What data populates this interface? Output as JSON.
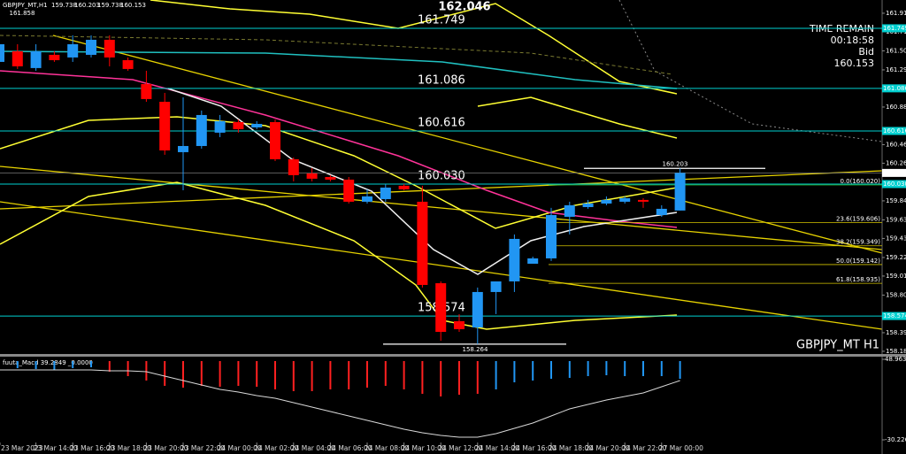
{
  "chart_data": {
    "type": "candlestick",
    "header": "GBPJPY_MT,H1",
    "symbol_label": "GBPJPY_MT H1",
    "categories": [
      "23 Mar 2023",
      null,
      "23 Mar 14:00",
      null,
      "23 Mar 16:00",
      null,
      "23 Mar 18:00",
      null,
      "23 Mar 20:00",
      null,
      "23 Mar 22:00",
      null,
      "24 Mar 00:00",
      null,
      "24 Mar 02:00",
      null,
      "24 Mar 04:00",
      null,
      "24 Mar 06:00",
      null,
      "24 Mar 08:00",
      null,
      "24 Mar 10:00",
      null,
      "24 Mar 12:00",
      null,
      "24 Mar 14:00",
      null,
      "24 Mar 16:00",
      null,
      "24 Mar 18:00",
      null,
      "24 Mar 20:00",
      null,
      "24 Mar 22:00",
      null,
      "27 Mar 00:00",
      null
    ],
    "open": [
      161.378,
      161.495,
      161.31,
      161.456,
      161.427,
      161.456,
      161.622,
      161.397,
      161.134,
      160.938,
      160.382,
      160.45,
      160.597,
      160.714,
      160.655,
      160.714,
      160.304,
      160.147,
      160.108,
      160.079,
      159.835,
      159.864,
      160.011,
      159.835,
      158.936,
      158.517,
      158.448,
      158.839,
      158.956,
      159.151,
      159.21,
      159.669,
      159.776,
      159.815,
      159.835,
      159.855,
      159.688,
      159.738
    ],
    "high": [
      161.671,
      161.573,
      161.573,
      161.495,
      161.671,
      161.671,
      161.671,
      161.427,
      161.28,
      161.036,
      160.987,
      160.841,
      160.792,
      160.743,
      160.724,
      160.743,
      160.323,
      160.206,
      160.128,
      160.108,
      159.972,
      160.03,
      160.03,
      160.011,
      158.956,
      158.595,
      158.888,
      158.956,
      159.474,
      159.229,
      159.767,
      159.835,
      159.855,
      159.894,
      159.894,
      159.874,
      159.796,
      160.203
    ],
    "low": [
      161.3,
      161.3,
      161.28,
      161.378,
      161.378,
      161.427,
      161.329,
      161.28,
      160.938,
      160.353,
      159.962,
      160.421,
      160.548,
      160.597,
      160.636,
      160.284,
      160.06,
      160.06,
      160.06,
      159.815,
      159.815,
      159.835,
      159.962,
      158.888,
      158.302,
      158.399,
      158.264,
      158.595,
      158.839,
      159.181,
      159.181,
      159.474,
      159.757,
      159.796,
      159.815,
      159.767,
      159.669,
      159.738
    ],
    "close": [
      161.573,
      161.329,
      161.495,
      161.397,
      161.573,
      161.622,
      161.427,
      161.3,
      160.968,
      160.401,
      160.45,
      160.792,
      160.724,
      160.636,
      160.694,
      160.304,
      160.128,
      160.089,
      160.079,
      159.835,
      159.894,
      159.991,
      159.972,
      158.917,
      158.399,
      158.429,
      158.839,
      158.956,
      159.425,
      159.21,
      159.688,
      159.796,
      159.815,
      159.855,
      159.874,
      159.835,
      159.757,
      160.153
    ],
    "up_color": "#2196f3",
    "down_color": "#ff0000",
    "ylim": [
      158.155,
      162.061
    ],
    "yticks": [
      161.915,
      {
        "value": 161.71,
        "label": "161.710"
      },
      {
        "value": 161.5,
        "label": "161.500"
      },
      {
        "value": 161.29,
        "label": "161.290"
      },
      {
        "value": 160.88,
        "label": "160.880"
      },
      160.465,
      {
        "value": 160.26,
        "label": "160.260"
      },
      159.845,
      159.635,
      {
        "value": 159.43,
        "label": "159.430"
      },
      {
        "value": 159.22,
        "label": "159.220"
      },
      159.015,
      158.805,
      {
        "value": 158.39,
        "label": "158.390"
      },
      158.185
    ],
    "levels": [
      161.749,
      161.086,
      160.616,
      {
        "value": 160.03,
        "label": "160.030"
      },
      158.574
    ],
    "level_color": "#00d0d0",
    "bid_label": "Bid",
    "bid": 160.153,
    "time_remain_label": "TIME REMAIN",
    "time_remain": "00:18:58",
    "price_labels": [
      162.046,
      161.858,
      160.203,
      158.264
    ],
    "fib_levels": [
      {
        "value": 160.02,
        "label": "0.0(160.020)"
      },
      {
        "value": 159.606,
        "label": "23.6(159.606)"
      },
      {
        "value": 159.349,
        "label": "38.2(159.349)"
      },
      {
        "value": 159.142,
        "label": "50.0(159.142)"
      },
      {
        "value": 158.935,
        "label": "61.8(158.935)"
      }
    ],
    "fib_color": "#d4c400",
    "indicator": {
      "title": "fuuta_Macd 39.2849 _0.0000",
      "y2lim": [
        -34.57,
        51.57
      ],
      "y2ticks": [
        48.9635,
        -30.2266
      ],
      "series": [
        {
          "color": "#2196f3",
          "values": [
            38.52,
            40.26,
            39.39,
            38.52,
            40.26,
            41.13,
            null,
            null,
            null,
            null,
            null,
            null,
            null,
            null,
            null,
            null,
            null,
            null,
            null,
            null,
            null,
            null,
            null,
            null,
            null,
            null,
            null,
            19.38,
            26.34,
            28.08,
            29.82,
            30.69,
            32.43,
            33.3,
            32.43,
            32.43,
            32.43,
            29.82
          ]
        },
        {
          "color": "#ff2020",
          "values": [
            null,
            null,
            null,
            null,
            null,
            null,
            36.78,
            32.43,
            28.08,
            22.86,
            21.12,
            22.86,
            21.99,
            22.86,
            21.99,
            19.38,
            17.64,
            17.64,
            19.38,
            19.38,
            21.12,
            22.86,
            19.38,
            15.03,
            12.42,
            14.16,
            15.03,
            null,
            null,
            null,
            null,
            null,
            null,
            null,
            null,
            null,
            null,
            null
          ]
        },
        {
          "color": "#d8d8d8",
          "line": true,
          "values": [
            38.52,
            38.52,
            38.52,
            38.52,
            38.52,
            38.52,
            37.65,
            37.65,
            36.78,
            32.43,
            28.08,
            23.73,
            19.38,
            16.77,
            13.28,
            10.67,
            6.32,
            1.97,
            -2.38,
            -6.73,
            -11.08,
            -15.43,
            -19.78,
            -23.26,
            -25.87,
            -27.61,
            -27.61,
            -24.13,
            -18.91,
            -13.69,
            -6.73,
            0.23,
            4.58,
            8.93,
            12.41,
            15.89,
            21.99,
            28.08
          ]
        }
      ]
    }
  }
}
